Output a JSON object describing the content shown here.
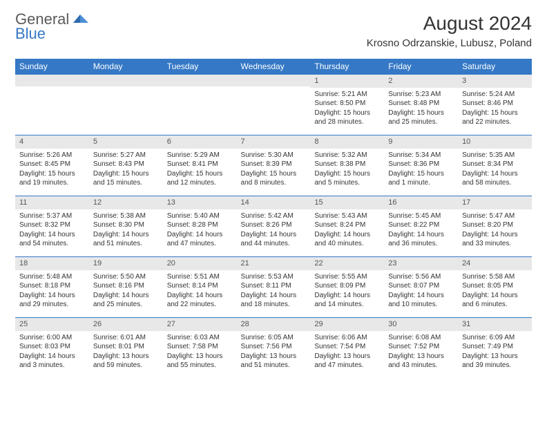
{
  "logo": {
    "line1": "General",
    "line2": "Blue"
  },
  "title": "August 2024",
  "location": "Krosno Odrzanskie, Lubusz, Poland",
  "colors": {
    "header_bg": "#3578c5",
    "header_text": "#ffffff",
    "daynum_bg": "#e8e8e8",
    "border": "#3578c5",
    "body_text": "#333333",
    "logo_gray": "#5a5a5a",
    "logo_blue": "#3578c5",
    "page_bg": "#ffffff"
  },
  "calendar": {
    "day_headers": [
      "Sunday",
      "Monday",
      "Tuesday",
      "Wednesday",
      "Thursday",
      "Friday",
      "Saturday"
    ],
    "col_width_pct": 14.28,
    "header_fontsize": 12,
    "daynum_fontsize": 11,
    "body_fontsize": 10,
    "weeks": [
      [
        null,
        null,
        null,
        null,
        {
          "n": "1",
          "sr": "5:21 AM",
          "ss": "8:50 PM",
          "dl": "15 hours and 28 minutes."
        },
        {
          "n": "2",
          "sr": "5:23 AM",
          "ss": "8:48 PM",
          "dl": "15 hours and 25 minutes."
        },
        {
          "n": "3",
          "sr": "5:24 AM",
          "ss": "8:46 PM",
          "dl": "15 hours and 22 minutes."
        }
      ],
      [
        {
          "n": "4",
          "sr": "5:26 AM",
          "ss": "8:45 PM",
          "dl": "15 hours and 19 minutes."
        },
        {
          "n": "5",
          "sr": "5:27 AM",
          "ss": "8:43 PM",
          "dl": "15 hours and 15 minutes."
        },
        {
          "n": "6",
          "sr": "5:29 AM",
          "ss": "8:41 PM",
          "dl": "15 hours and 12 minutes."
        },
        {
          "n": "7",
          "sr": "5:30 AM",
          "ss": "8:39 PM",
          "dl": "15 hours and 8 minutes."
        },
        {
          "n": "8",
          "sr": "5:32 AM",
          "ss": "8:38 PM",
          "dl": "15 hours and 5 minutes."
        },
        {
          "n": "9",
          "sr": "5:34 AM",
          "ss": "8:36 PM",
          "dl": "15 hours and 1 minute."
        },
        {
          "n": "10",
          "sr": "5:35 AM",
          "ss": "8:34 PM",
          "dl": "14 hours and 58 minutes."
        }
      ],
      [
        {
          "n": "11",
          "sr": "5:37 AM",
          "ss": "8:32 PM",
          "dl": "14 hours and 54 minutes."
        },
        {
          "n": "12",
          "sr": "5:38 AM",
          "ss": "8:30 PM",
          "dl": "14 hours and 51 minutes."
        },
        {
          "n": "13",
          "sr": "5:40 AM",
          "ss": "8:28 PM",
          "dl": "14 hours and 47 minutes."
        },
        {
          "n": "14",
          "sr": "5:42 AM",
          "ss": "8:26 PM",
          "dl": "14 hours and 44 minutes."
        },
        {
          "n": "15",
          "sr": "5:43 AM",
          "ss": "8:24 PM",
          "dl": "14 hours and 40 minutes."
        },
        {
          "n": "16",
          "sr": "5:45 AM",
          "ss": "8:22 PM",
          "dl": "14 hours and 36 minutes."
        },
        {
          "n": "17",
          "sr": "5:47 AM",
          "ss": "8:20 PM",
          "dl": "14 hours and 33 minutes."
        }
      ],
      [
        {
          "n": "18",
          "sr": "5:48 AM",
          "ss": "8:18 PM",
          "dl": "14 hours and 29 minutes."
        },
        {
          "n": "19",
          "sr": "5:50 AM",
          "ss": "8:16 PM",
          "dl": "14 hours and 25 minutes."
        },
        {
          "n": "20",
          "sr": "5:51 AM",
          "ss": "8:14 PM",
          "dl": "14 hours and 22 minutes."
        },
        {
          "n": "21",
          "sr": "5:53 AM",
          "ss": "8:11 PM",
          "dl": "14 hours and 18 minutes."
        },
        {
          "n": "22",
          "sr": "5:55 AM",
          "ss": "8:09 PM",
          "dl": "14 hours and 14 minutes."
        },
        {
          "n": "23",
          "sr": "5:56 AM",
          "ss": "8:07 PM",
          "dl": "14 hours and 10 minutes."
        },
        {
          "n": "24",
          "sr": "5:58 AM",
          "ss": "8:05 PM",
          "dl": "14 hours and 6 minutes."
        }
      ],
      [
        {
          "n": "25",
          "sr": "6:00 AM",
          "ss": "8:03 PM",
          "dl": "14 hours and 3 minutes."
        },
        {
          "n": "26",
          "sr": "6:01 AM",
          "ss": "8:01 PM",
          "dl": "13 hours and 59 minutes."
        },
        {
          "n": "27",
          "sr": "6:03 AM",
          "ss": "7:58 PM",
          "dl": "13 hours and 55 minutes."
        },
        {
          "n": "28",
          "sr": "6:05 AM",
          "ss": "7:56 PM",
          "dl": "13 hours and 51 minutes."
        },
        {
          "n": "29",
          "sr": "6:06 AM",
          "ss": "7:54 PM",
          "dl": "13 hours and 47 minutes."
        },
        {
          "n": "30",
          "sr": "6:08 AM",
          "ss": "7:52 PM",
          "dl": "13 hours and 43 minutes."
        },
        {
          "n": "31",
          "sr": "6:09 AM",
          "ss": "7:49 PM",
          "dl": "13 hours and 39 minutes."
        }
      ]
    ]
  },
  "labels": {
    "sunrise": "Sunrise:",
    "sunset": "Sunset:",
    "daylight": "Daylight:"
  }
}
